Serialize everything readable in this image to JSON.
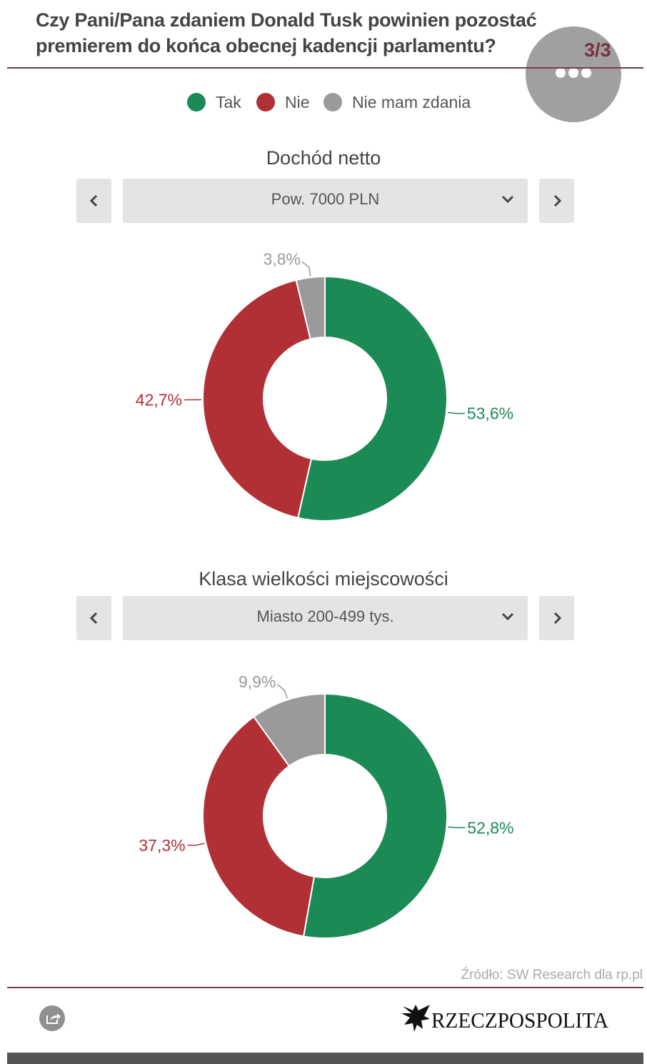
{
  "title": "Czy Pani/Pana zdaniem Donald Tusk powinien pozostać premierem do końca obecnej kadencji parlamentu?",
  "pager": {
    "counter": "3/3",
    "icon": "more-dots-icon"
  },
  "legend": [
    {
      "label": "Tak",
      "color": "#1b8a55"
    },
    {
      "label": "Nie",
      "color": "#b03036"
    },
    {
      "label": "Nie mam zdania",
      "color": "#9a9a9a"
    }
  ],
  "filters": [
    {
      "section_title": "Dochód netto",
      "selected": "Pow. 7000 PLN"
    },
    {
      "section_title": "Klasa wielkości miejscowości",
      "selected": "Miasto 200-499 tys."
    }
  ],
  "chart_data": [
    {
      "type": "pie",
      "variant": "donut",
      "title": "Dochód netto",
      "subtitle": "Pow. 7000 PLN",
      "categories": [
        "Tak",
        "Nie",
        "Nie mam zdania"
      ],
      "values": [
        53.6,
        42.7,
        3.8
      ],
      "labels": [
        "53,6%",
        "42,7%",
        "3,8%"
      ],
      "colors": [
        "#1b8a55",
        "#b03036",
        "#9a9a9a"
      ],
      "legend": "top"
    },
    {
      "type": "pie",
      "variant": "donut",
      "title": "Klasa wielkości miejscowości",
      "subtitle": "Miasto 200-499 tys.",
      "categories": [
        "Tak",
        "Nie",
        "Nie mam zdania"
      ],
      "values": [
        52.8,
        37.3,
        9.9
      ],
      "labels": [
        "52,8%",
        "37,3%",
        "9,9%"
      ],
      "colors": [
        "#1b8a55",
        "#b03036",
        "#9a9a9a"
      ],
      "legend": "top"
    }
  ],
  "source": "Źródło: SW Research dla rp.pl",
  "logo_text": "RZECZPOSPOLITA"
}
